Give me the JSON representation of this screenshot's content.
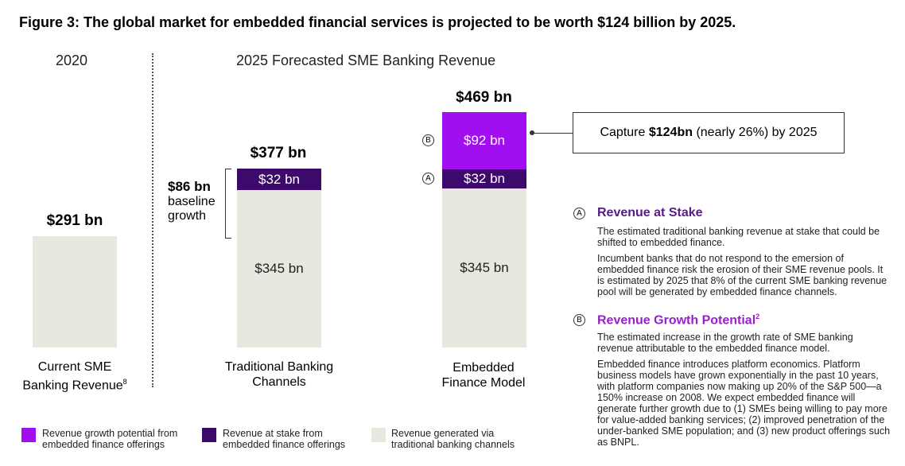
{
  "title": "Figure 3: The global market for embedded financial services is projected to be worth $124 billion by 2025.",
  "sections": {
    "left": "2020",
    "right": "2025 Forecasted SME Banking Revenue"
  },
  "colors": {
    "growth": "#a10ff0",
    "stake": "#3d0a6b",
    "traditional": "#e8e7e0"
  },
  "chart_data": {
    "type": "bar",
    "stacked": true,
    "categories": [
      "Current SME Banking Revenue",
      "Traditional Banking Channels",
      "Embedded Finance Model"
    ],
    "series": [
      {
        "name": "Revenue generated via traditional banking channels",
        "values": [
          291,
          345,
          345
        ]
      },
      {
        "name": "Revenue at stake from embedded finance offerings",
        "values": [
          0,
          32,
          32
        ]
      },
      {
        "name": "Revenue growth potential from embedded finance offerings",
        "values": [
          0,
          0,
          92
        ]
      }
    ],
    "units": "bn USD"
  },
  "bars": {
    "current": {
      "total": "$291 bn",
      "cat1": "Current SME",
      "cat2": "Banking Revenue",
      "sup": "8"
    },
    "traditional": {
      "total": "$377 bn",
      "seg_base": "$345 bn",
      "seg_stake": "$32 bn",
      "cat1": "Traditional Banking",
      "cat2": "Channels"
    },
    "embedded": {
      "total": "$469 bn",
      "seg_base": "$345 bn",
      "seg_stake": "$32 bn",
      "seg_growth": "$92 bn",
      "cat1": "Embedded",
      "cat2": "Finance Model"
    }
  },
  "baseline": {
    "value": "$86 bn",
    "line1": "baseline",
    "line2": "growth"
  },
  "markers": {
    "a": "A",
    "b": "B"
  },
  "callout": {
    "pre": "Capture ",
    "bold": "$124bn",
    "post": " (nearly 26%) by 2025"
  },
  "explain": {
    "a_head": "Revenue at Stake",
    "a_p1": "The estimated traditional banking revenue at stake that could be shifted to embedded finance.",
    "a_p2": "Incumbent banks that do not respond to the emersion of embedded finance risk the erosion of their SME revenue pools. It is estimated by 2025 that 8% of the current SME banking revenue pool will be generated by embedded finance channels.",
    "b_head": "Revenue Growth Potential",
    "b_sup": "2",
    "b_p1": "The estimated increase in the growth rate of SME banking revenue attributable to the embedded finance model.",
    "b_p2": "Embedded finance introduces platform economics. Platform business models have grown exponentially in the past 10 years, with platform companies now making up 20% of the S&P 500—a 150% increase on 2008. We expect embedded finance will generate further growth due to (1) SMEs being willing to pay more for value-added banking services; (2) improved penetration of the under-banked SME population; and (3) new product offerings such as BNPL."
  },
  "legend": {
    "growth": "Revenue growth potential from embedded finance offerings",
    "stake": "Revenue at stake from embedded finance offerings",
    "traditional": "Revenue generated via traditional banking channels"
  }
}
